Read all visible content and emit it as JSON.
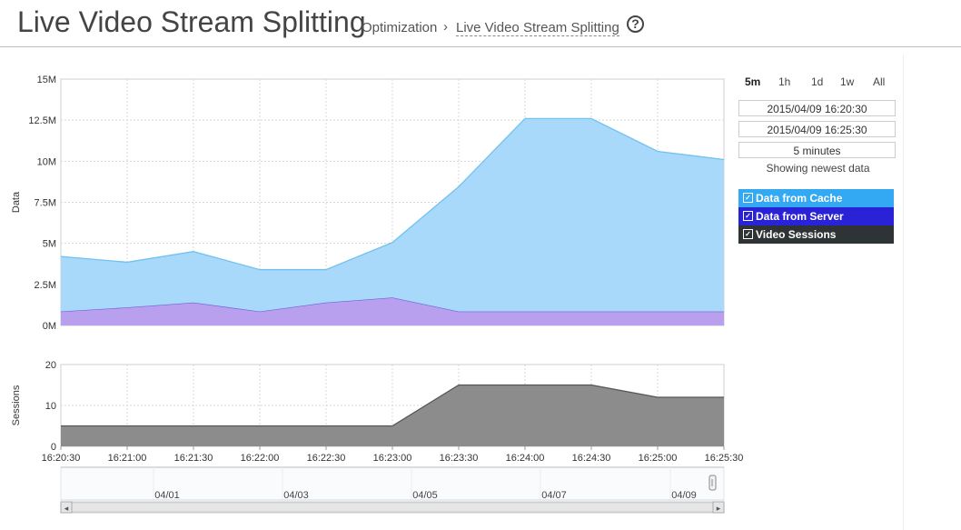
{
  "header": {
    "title": "Live Video Stream Splitting",
    "breadcrumb_root": "Optimization",
    "breadcrumb_sep": "›",
    "breadcrumb_current": "Live Video Stream Splitting",
    "help_glyph": "?"
  },
  "controls": {
    "ranges": [
      "5m",
      "1h",
      "1d",
      "1w",
      "All"
    ],
    "active_range": "5m",
    "start_time": "2015/04/09 16:20:30",
    "end_time": "2015/04/09 16:25:30",
    "duration": "5 minutes",
    "status": "Showing newest data"
  },
  "legend": [
    {
      "label": "Data from Cache",
      "color": "#33a9f4",
      "checked": true
    },
    {
      "label": "Data from Server",
      "color": "#2a22d6",
      "checked": true
    },
    {
      "label": "Video Sessions",
      "color": "#2e3436",
      "checked": true
    }
  ],
  "chart_data": [
    {
      "type": "area",
      "ylabel": "Data",
      "yticks": [
        "0M",
        "2.5M",
        "5M",
        "7.5M",
        "10M",
        "12.5M",
        "15M"
      ],
      "ylim": [
        0,
        15
      ],
      "x": [
        "16:20:30",
        "16:21:00",
        "16:21:30",
        "16:22:00",
        "16:22:30",
        "16:23:00",
        "16:23:30",
        "16:24:00",
        "16:24:30",
        "16:25:00",
        "16:25:30"
      ],
      "stacked": true,
      "series": [
        {
          "name": "Data from Server",
          "color": "#b9a0ee",
          "line": "#6f63d8",
          "values": [
            0.85,
            1.1,
            1.4,
            0.85,
            1.4,
            1.7,
            0.85,
            0.85,
            0.85,
            0.85,
            0.85
          ]
        },
        {
          "name": "Data from Cache",
          "color": "#a8d8fa",
          "line": "#72c2ee",
          "values": [
            3.35,
            2.75,
            3.1,
            2.55,
            2.0,
            3.35,
            7.6,
            11.75,
            11.75,
            9.75,
            9.25
          ]
        }
      ],
      "grid": true
    },
    {
      "type": "area",
      "ylabel": "Sessions",
      "yticks": [
        "0",
        "10",
        "20"
      ],
      "ylim": [
        0,
        20
      ],
      "x": [
        "16:20:30",
        "16:21:00",
        "16:21:30",
        "16:22:00",
        "16:22:30",
        "16:23:00",
        "16:23:30",
        "16:24:00",
        "16:24:30",
        "16:25:00",
        "16:25:30"
      ],
      "series": [
        {
          "name": "Video Sessions",
          "color": "#8c8c8c",
          "line": "#555555",
          "values": [
            5,
            5,
            5,
            5,
            5,
            5,
            15,
            15,
            15,
            12,
            12
          ]
        }
      ],
      "grid": true
    }
  ],
  "navigator": {
    "dates": [
      "04/01",
      "04/03",
      "04/05",
      "04/07",
      "04/09"
    ],
    "scroll_left": "◂",
    "scroll_right": "▸"
  }
}
